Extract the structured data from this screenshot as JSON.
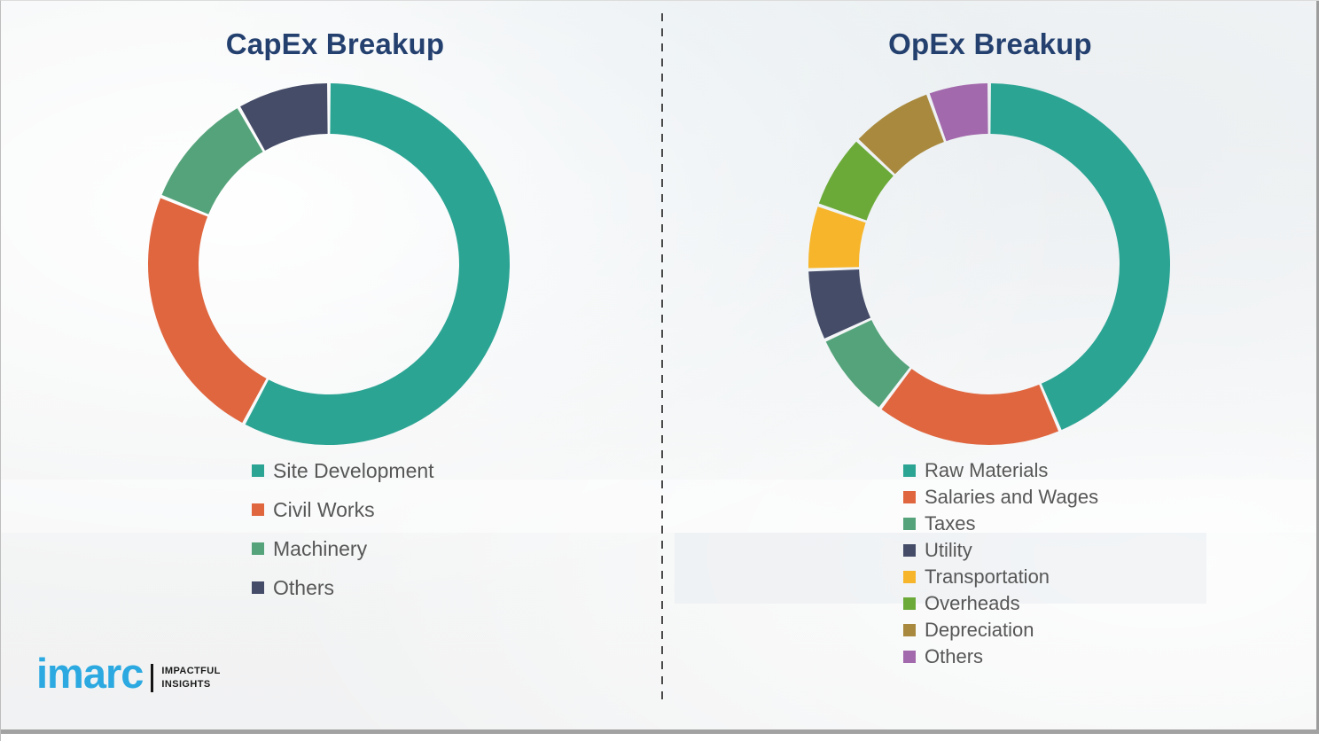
{
  "page": {
    "background_color": "#f3f4f4",
    "frame_color": "#9e9e9e",
    "divider_style": "vertical dashed line between the two charts",
    "divider_color": "#4a4a4a"
  },
  "chart_data": [
    {
      "type": "pie",
      "subtype": "donut",
      "title": "CapEx Breakup",
      "labels": [
        "Site Development",
        "Civil Works",
        "Machinery",
        "Others"
      ],
      "values": [
        57.8,
        23.3,
        10.6,
        8.3
      ],
      "colors": [
        "#2BA493",
        "#DF663F",
        "#55A37B",
        "#454C68"
      ],
      "value_unit": "percent-of-ring (estimated from arc angles; no data labels shown in chart)",
      "start_angle_deg": 0,
      "direction": "clockwise",
      "inner_radius_ratio": 0.72,
      "legend_position": "below-left",
      "title_color": "#24406F",
      "legend_text_color": "#575757"
    },
    {
      "type": "pie",
      "subtype": "donut",
      "title": "OpEx Breakup",
      "labels": [
        "Raw Materials",
        "Salaries and Wages",
        "Taxes",
        "Utility",
        "Transportation",
        "Overheads",
        "Depreciation",
        "Others"
      ],
      "values": [
        43.6,
        16.7,
        7.8,
        6.4,
        5.8,
        6.7,
        7.5,
        5.5
      ],
      "colors": [
        "#2BA493",
        "#DF663F",
        "#55A37B",
        "#454C68",
        "#F6B52B",
        "#6BAA39",
        "#A8893E",
        "#A269AC"
      ],
      "value_unit": "percent-of-ring (estimated from arc angles; no data labels shown in chart)",
      "start_angle_deg": 0,
      "direction": "clockwise",
      "inner_radius_ratio": 0.72,
      "legend_position": "below-left",
      "title_color": "#24406F",
      "legend_text_color": "#575757"
    }
  ],
  "logo": {
    "brand": "imarc",
    "brand_color": "#2BA9E0",
    "tagline": [
      "IMPACTFUL",
      "INSIGHTS"
    ],
    "separator_color": "#141414"
  }
}
